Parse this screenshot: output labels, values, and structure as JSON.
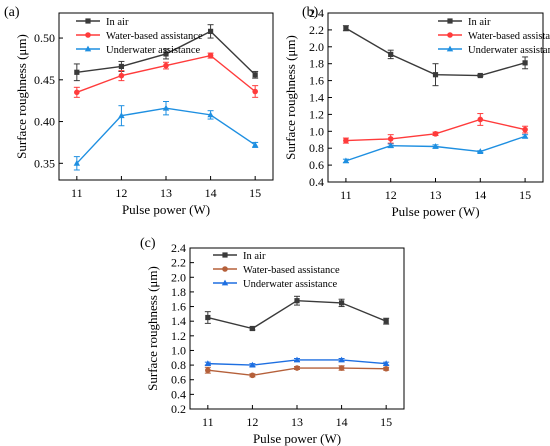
{
  "chart_data": [
    {
      "panel_label": "(a)",
      "type": "line",
      "x": [
        11,
        12,
        13,
        14,
        15
      ],
      "xlabel": "Pulse power (W)",
      "ylabel": "Surface roughness (μm)",
      "xlim": [
        10.6,
        15.4
      ],
      "ylim": [
        0.33,
        0.53
      ],
      "yticks": [
        0.35,
        0.4,
        0.45,
        0.5
      ],
      "ytick_labels": [
        "0.35",
        "0.40",
        "0.45",
        "0.50"
      ],
      "xtick_labels": [
        "11",
        "12",
        "13",
        "14",
        "15"
      ],
      "legend_position": "top-left",
      "series": [
        {
          "name": "In air",
          "color": "#3a3a3a",
          "marker": "square",
          "values": [
            0.459,
            0.466,
            0.481,
            0.508,
            0.456
          ],
          "errors": [
            0.01,
            0.006,
            0.006,
            0.008,
            0.004
          ]
        },
        {
          "name": "Water-based assistance",
          "color": "#ff3b3b",
          "marker": "circle",
          "values": [
            0.435,
            0.455,
            0.467,
            0.479,
            0.436
          ],
          "errors": [
            0.006,
            0.006,
            0.004,
            0.003,
            0.007
          ]
        },
        {
          "name": "Underwater assistance",
          "color": "#1e8fe1",
          "marker": "triangle",
          "values": [
            0.35,
            0.407,
            0.416,
            0.408,
            0.372
          ],
          "errors": [
            0.008,
            0.012,
            0.008,
            0.005,
            0.003
          ]
        }
      ]
    },
    {
      "panel_label": "(b)",
      "type": "line",
      "x": [
        11,
        12,
        13,
        14,
        15
      ],
      "xlabel": "Pulse power (W)",
      "ylabel": "Surface roughness (μm)",
      "xlim": [
        10.6,
        15.4
      ],
      "ylim": [
        0.4,
        2.4
      ],
      "yticks": [
        0.4,
        0.6,
        0.8,
        1.0,
        1.2,
        1.4,
        1.6,
        1.8,
        2.0,
        2.2,
        2.4
      ],
      "ytick_labels": [
        "0.4",
        "0.6",
        "0.8",
        "1.0",
        "1.2",
        "1.4",
        "1.6",
        "1.8",
        "2.0",
        "2.2",
        "2.4"
      ],
      "xtick_labels": [
        "11",
        "12",
        "13",
        "14",
        "15"
      ],
      "legend_position": "top-right",
      "series": [
        {
          "name": "In air",
          "color": "#3a3a3a",
          "marker": "square",
          "values": [
            2.22,
            1.91,
            1.67,
            1.66,
            1.81
          ],
          "errors": [
            0.03,
            0.05,
            0.13,
            0.01,
            0.07
          ]
        },
        {
          "name": "Water-based assistance",
          "color": "#ff3b3b",
          "marker": "circle",
          "values": [
            0.89,
            0.91,
            0.97,
            1.14,
            1.02
          ],
          "errors": [
            0.03,
            0.05,
            0.02,
            0.07,
            0.04
          ]
        },
        {
          "name": "Underwater assistance",
          "color": "#1e8fe1",
          "marker": "triangle",
          "values": [
            0.65,
            0.83,
            0.82,
            0.76,
            0.94
          ],
          "errors": [
            0.02,
            0.02,
            0.02,
            0.01,
            0.02
          ]
        }
      ]
    },
    {
      "panel_label": "(c)",
      "type": "line",
      "x": [
        11,
        12,
        13,
        14,
        15
      ],
      "xlabel": "Pulse power (W)",
      "ylabel": "Surface roughness (μm)",
      "xlim": [
        10.6,
        15.4
      ],
      "ylim": [
        0.2,
        2.4
      ],
      "yticks": [
        0.2,
        0.4,
        0.6,
        0.8,
        1.0,
        1.2,
        1.4,
        1.6,
        1.8,
        2.0,
        2.2,
        2.4
      ],
      "ytick_labels": [
        "0.2",
        "0.4",
        "0.6",
        "0.8",
        "1.0",
        "1.2",
        "1.4",
        "1.6",
        "1.8",
        "2.0",
        "2.2",
        "2.4"
      ],
      "xtick_labels": [
        "11",
        "12",
        "13",
        "14",
        "15"
      ],
      "legend_position": "top-left",
      "series": [
        {
          "name": "In air",
          "color": "#3a3a3a",
          "marker": "square",
          "values": [
            1.45,
            1.3,
            1.68,
            1.65,
            1.4
          ],
          "errors": [
            0.08,
            0.02,
            0.06,
            0.05,
            0.04
          ]
        },
        {
          "name": "Water-based assistance",
          "color": "#b5603a",
          "marker": "circle",
          "values": [
            0.73,
            0.66,
            0.76,
            0.76,
            0.75
          ],
          "errors": [
            0.04,
            0.02,
            0.02,
            0.03,
            0.02
          ]
        },
        {
          "name": "Underwater assistance",
          "color": "#1e6fe1",
          "marker": "triangle",
          "values": [
            0.82,
            0.8,
            0.87,
            0.87,
            0.82
          ],
          "errors": [
            0.02,
            0.02,
            0.02,
            0.02,
            0.02
          ]
        }
      ]
    }
  ]
}
